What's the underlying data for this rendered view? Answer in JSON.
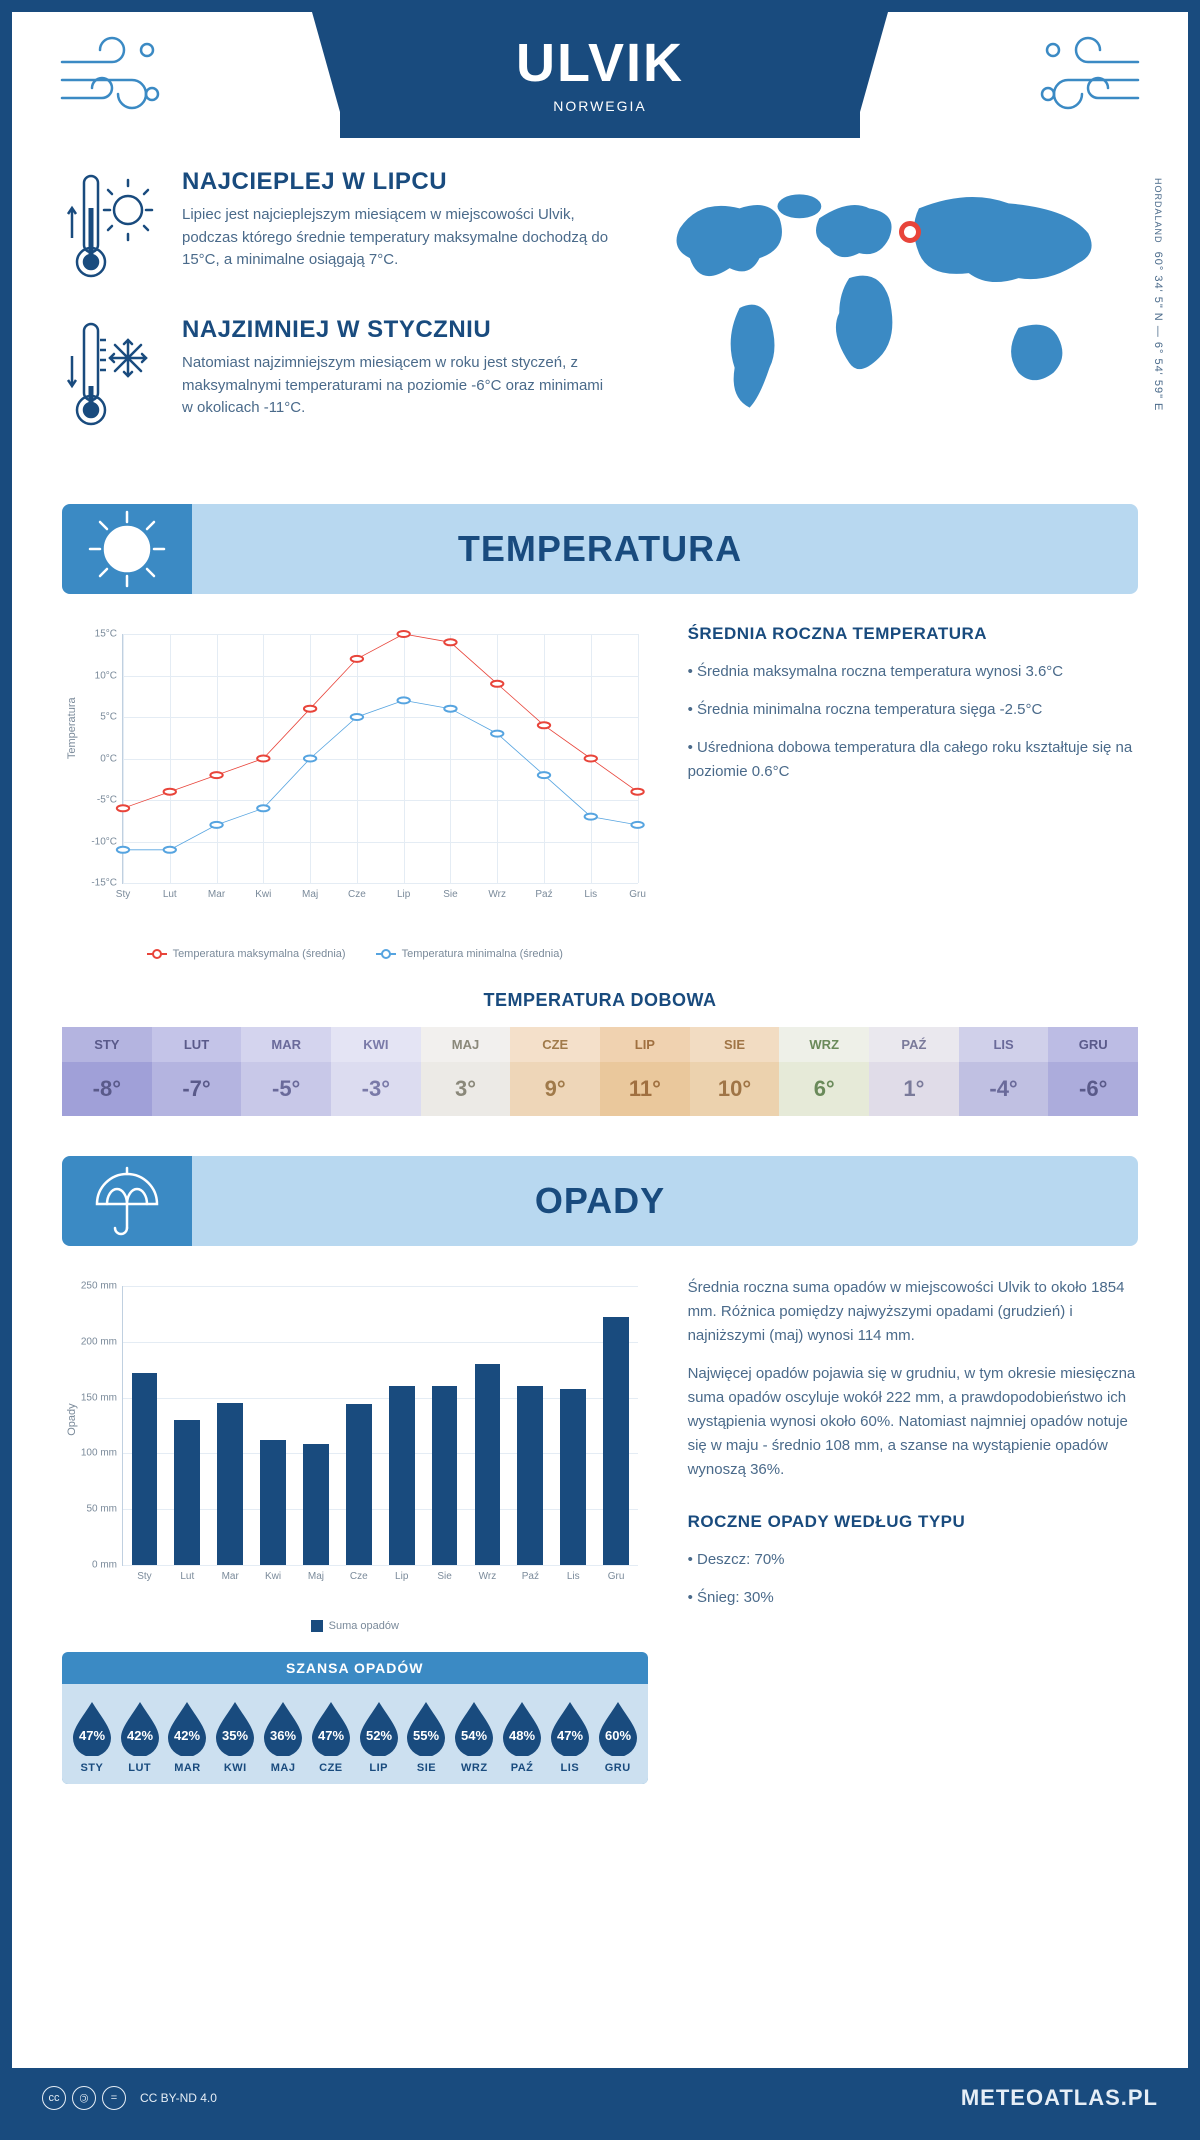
{
  "header": {
    "city": "ULVIK",
    "country": "NORWEGIA"
  },
  "coords": {
    "lat": "60° 34' 5\" N",
    "sep": "—",
    "lon": "6° 54' 59\" E",
    "region": "HORDALAND"
  },
  "intro": {
    "hot": {
      "title": "NAJCIEPLEJ W LIPCU",
      "text": "Lipiec jest najcieplejszym miesiącem w miejscowości Ulvik, podczas którego średnie temperatury maksymalne dochodzą do 15°C, a minimalne osiągają 7°C."
    },
    "cold": {
      "title": "NAJZIMNIEJ W STYCZNIU",
      "text": "Natomiast najzimniejszym miesiącem w roku jest styczeń, z maksymalnymi temperaturami na poziomie -6°C oraz minimami w okolicach -11°C."
    }
  },
  "sections": {
    "temperature": "TEMPERATURA",
    "precip": "OPADY"
  },
  "months": [
    "Sty",
    "Lut",
    "Mar",
    "Kwi",
    "Maj",
    "Cze",
    "Lip",
    "Sie",
    "Wrz",
    "Paź",
    "Lis",
    "Gru"
  ],
  "months_upper": [
    "STY",
    "LUT",
    "MAR",
    "KWI",
    "MAJ",
    "CZE",
    "LIP",
    "SIE",
    "WRZ",
    "PAŹ",
    "LIS",
    "GRU"
  ],
  "temp_chart": {
    "type": "line",
    "yaxis_title": "Temperatura",
    "ylim": [
      -15,
      15
    ],
    "ytick_step": 5,
    "ytick_labels": [
      "-15°C",
      "-10°C",
      "-5°C",
      "0°C",
      "5°C",
      "10°C",
      "15°C"
    ],
    "grid_color": "#e4ecf4",
    "series": [
      {
        "name": "Temperatura maksymalna (średnia)",
        "color": "#e8443a",
        "values": [
          -6,
          -4,
          -2,
          0,
          6,
          12,
          15,
          14,
          9,
          4,
          0,
          -4
        ]
      },
      {
        "name": "Temperatura minimalna (średnia)",
        "color": "#56a4e0",
        "values": [
          -11,
          -11,
          -8,
          -6,
          0,
          5,
          7,
          6,
          3,
          -2,
          -7,
          -8
        ]
      }
    ],
    "legend": {
      "max": "Temperatura maksymalna (średnia)",
      "min": "Temperatura minimalna (średnia)"
    }
  },
  "temp_info": {
    "title": "ŚREDNIA ROCZNA TEMPERATURA",
    "bullets": [
      "Średnia maksymalna roczna temperatura wynosi 3.6°C",
      "Średnia minimalna roczna temperatura sięga -2.5°C",
      "Uśredniona dobowa temperatura dla całego roku kształtuje się na poziomie 0.6°C"
    ]
  },
  "daily_temp": {
    "title": "TEMPERATURA DOBOWA",
    "values": [
      "-8°",
      "-7°",
      "-5°",
      "-3°",
      "3°",
      "9°",
      "11°",
      "10°",
      "6°",
      "1°",
      "-4°",
      "-6°"
    ],
    "header_colors": [
      "#b4b4e0",
      "#c4c4e8",
      "#d4d4ee",
      "#e4e4f4",
      "#f2f0ee",
      "#f4e0ca",
      "#f0d2b0",
      "#f2dcc2",
      "#eef0e8",
      "#eae8ee",
      "#d0d0ea",
      "#bcbce4"
    ],
    "value_colors": [
      "#a0a0d8",
      "#b4b4e0",
      "#c8c8e8",
      "#dcdcf0",
      "#eceae6",
      "#eed6b8",
      "#eac89c",
      "#ecd2ae",
      "#e6ead8",
      "#e0dce8",
      "#c0c0e2",
      "#acacdc"
    ],
    "text_colors": [
      "#5a5a8a",
      "#5a5a8a",
      "#6a6a9a",
      "#7a7aa8",
      "#8a887a",
      "#a07a4a",
      "#a07040",
      "#a07546",
      "#6a8a5a",
      "#7a7a9a",
      "#6a6a9a",
      "#5a5a8a"
    ]
  },
  "precip_chart": {
    "type": "bar",
    "yaxis_title": "Opady",
    "ylim": [
      0,
      250
    ],
    "ytick_step": 50,
    "ytick_labels": [
      "0 mm",
      "50 mm",
      "100 mm",
      "150 mm",
      "200 mm",
      "250 mm"
    ],
    "bar_color": "#194b7e",
    "values": [
      172,
      130,
      145,
      112,
      108,
      144,
      160,
      160,
      180,
      160,
      158,
      222
    ],
    "legend": "Suma opadów"
  },
  "precip_info": {
    "p1": "Średnia roczna suma opadów w miejscowości Ulvik to około 1854 mm. Różnica pomiędzy najwyższymi opadami (grudzień) i najniższymi (maj) wynosi 114 mm.",
    "p2": "Najwięcej opadów pojawia się w grudniu, w tym okresie miesięczna suma opadów oscyluje wokół 222 mm, a prawdopodobieństwo ich wystąpienia wynosi około 60%. Natomiast najmniej opadów notuje się w maju - średnio 108 mm, a szanse na wystąpienie opadów wynoszą 36%."
  },
  "rain_chance": {
    "title": "SZANSA OPADÓW",
    "values": [
      "47%",
      "42%",
      "42%",
      "35%",
      "36%",
      "47%",
      "52%",
      "55%",
      "54%",
      "48%",
      "47%",
      "60%"
    ],
    "drop_color": "#194b7e"
  },
  "precip_type": {
    "title": "ROCZNE OPADY WEDŁUG TYPU",
    "items": [
      "Deszcz: 70%",
      "Śnieg: 30%"
    ]
  },
  "footer": {
    "license": "CC BY-ND 4.0",
    "brand": "METEOATLAS.PL"
  },
  "colors": {
    "brand": "#194b7e",
    "accent_light": "#b8d8f0",
    "accent_mid": "#3b8ac4",
    "text_muted": "#4a6a8a"
  }
}
